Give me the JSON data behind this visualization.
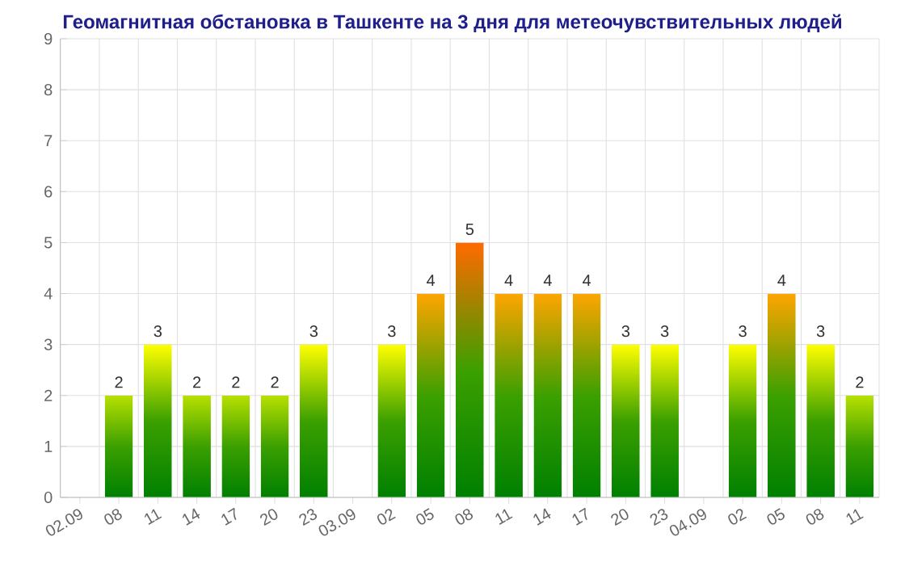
{
  "chart_data": {
    "type": "bar",
    "title": "Геомагнитная обстановка в Ташкенте на 3 дня для метеочувствительных людей",
    "categories": [
      "02.09",
      "08",
      "11",
      "14",
      "17",
      "20",
      "23",
      "03.09",
      "02",
      "05",
      "08",
      "11",
      "14",
      "17",
      "20",
      "23",
      "04.09",
      "02",
      "05",
      "08",
      "11"
    ],
    "values": [
      null,
      2,
      3,
      2,
      2,
      2,
      3,
      null,
      3,
      4,
      5,
      4,
      4,
      4,
      3,
      3,
      null,
      3,
      4,
      3,
      2
    ],
    "colors": [
      "#ffff00",
      "#b8e000",
      "#ffff00",
      "#b8e000",
      "#b8e000",
      "#b8e000",
      "#ffff00",
      "#ffff00",
      "#ffff00",
      "#ffa500",
      "#ff6a00",
      "#ffa500",
      "#ffa500",
      "#ffa500",
      "#ffff00",
      "#ffff00",
      "#ffff00",
      "#ffff00",
      "#ffa500",
      "#ffff00",
      "#b8e000"
    ],
    "ylim": [
      0,
      9
    ],
    "yticks": [
      0,
      1,
      2,
      3,
      4,
      5,
      6,
      7,
      8,
      9
    ],
    "grid": true,
    "data_labels": true
  }
}
